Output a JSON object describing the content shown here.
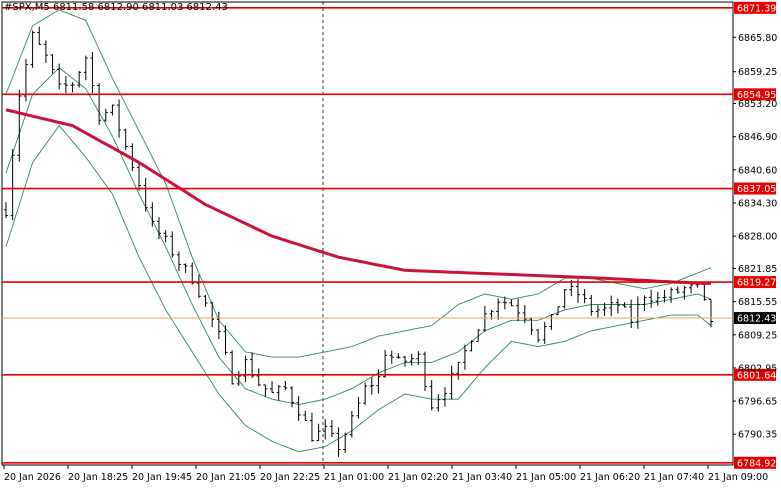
{
  "header": {
    "symbol_line": "#SPX,M5  6811.58 6812.90 6811.03 6812.43"
  },
  "colors": {
    "candle": "#000000",
    "bollinger": "#2e8b57",
    "moving_average": "#c8143c",
    "level_line": "#e60000",
    "current_price_line": "#e8a070",
    "current_price_label_bg": "#000000",
    "level_label_bg": "#e60000"
  },
  "chart_data": {
    "type": "candlestick",
    "ylim": [
      6784.5,
      6872.5
    ],
    "y_ticks": [
      "6865.80",
      "6859.25",
      "6853.20",
      "6846.90",
      "6840.60",
      "6834.30",
      "6828.00",
      "6821.85",
      "6815.55",
      "6809.25",
      "6802.95",
      "6796.65",
      "6790.35"
    ],
    "x_ticks": [
      "20 Jan 2026",
      "20 Jan 18:25",
      "20 Jan 19:45",
      "20 Jan 21:05",
      "20 Jan 22:25",
      "21 Jan 01:00",
      "21 Jan 02:20",
      "21 Jan 03:40",
      "21 Jan 05:00",
      "21 Jan 06:20",
      "21 Jan 07:40",
      "21 Jan 09:00"
    ],
    "session_separator_after": "20 Jan 22:25",
    "horizontal_levels": [
      "6871.39",
      "6854.95",
      "6837.05",
      "6819.27",
      "6801.64",
      "6784.92"
    ],
    "current_price": "6812.43",
    "close_path": [
      [
        0,
        6833
      ],
      [
        2,
        6855
      ],
      [
        4,
        6866
      ],
      [
        6,
        6862
      ],
      [
        8,
        6856
      ],
      [
        10,
        6857
      ],
      [
        12,
        6862
      ],
      [
        14,
        6851
      ],
      [
        16,
        6852
      ],
      [
        18,
        6845
      ],
      [
        20,
        6838
      ],
      [
        22,
        6830
      ],
      [
        24,
        6827
      ],
      [
        26,
        6823
      ],
      [
        28,
        6820
      ],
      [
        30,
        6815
      ],
      [
        32,
        6809
      ],
      [
        34,
        6801
      ],
      [
        36,
        6804
      ],
      [
        38,
        6800
      ],
      [
        40,
        6798
      ],
      [
        42,
        6799
      ],
      [
        44,
        6795
      ],
      [
        46,
        6790
      ],
      [
        48,
        6791
      ],
      [
        50,
        6788
      ],
      [
        52,
        6793
      ],
      [
        54,
        6799
      ],
      [
        56,
        6801
      ],
      [
        57,
        6806
      ],
      [
        59,
        6804
      ],
      [
        62,
        6805
      ],
      [
        64,
        6796
      ],
      [
        66,
        6799
      ],
      [
        68,
        6803
      ],
      [
        70,
        6809
      ],
      [
        72,
        6813
      ],
      [
        74,
        6816
      ],
      [
        76,
        6815
      ],
      [
        78,
        6813
      ],
      [
        80,
        6809
      ],
      [
        82,
        6812
      ],
      [
        84,
        6818
      ],
      [
        86,
        6817
      ],
      [
        88,
        6814
      ],
      [
        90,
        6814
      ],
      [
        92,
        6815
      ],
      [
        94,
        6812
      ],
      [
        96,
        6817
      ],
      [
        98,
        6816
      ],
      [
        100,
        6817
      ],
      [
        102,
        6818
      ],
      [
        104,
        6818
      ],
      [
        106,
        6812
      ]
    ],
    "moving_average_path": [
      [
        0,
        6852
      ],
      [
        10,
        6849
      ],
      [
        20,
        6842
      ],
      [
        30,
        6834
      ],
      [
        40,
        6828
      ],
      [
        50,
        6824
      ],
      [
        60,
        6821.5
      ],
      [
        70,
        6821
      ],
      [
        80,
        6820.5
      ],
      [
        90,
        6820
      ],
      [
        100,
        6819.3
      ],
      [
        106,
        6819
      ]
    ],
    "bollinger_upper_path": [
      [
        0,
        6855
      ],
      [
        4,
        6868
      ],
      [
        8,
        6871
      ],
      [
        12,
        6869
      ],
      [
        16,
        6858
      ],
      [
        20,
        6848
      ],
      [
        24,
        6838
      ],
      [
        28,
        6824
      ],
      [
        32,
        6812
      ],
      [
        36,
        6806
      ],
      [
        40,
        6805
      ],
      [
        44,
        6805
      ],
      [
        48,
        6806
      ],
      [
        52,
        6807
      ],
      [
        56,
        6809
      ],
      [
        60,
        6810
      ],
      [
        64,
        6811
      ],
      [
        68,
        6815
      ],
      [
        72,
        6817
      ],
      [
        76,
        6816
      ],
      [
        80,
        6817
      ],
      [
        84,
        6820
      ],
      [
        88,
        6820
      ],
      [
        92,
        6819
      ],
      [
        96,
        6818
      ],
      [
        100,
        6819
      ],
      [
        104,
        6821
      ],
      [
        106,
        6822
      ]
    ],
    "bollinger_middle_path": [
      [
        0,
        6840
      ],
      [
        4,
        6855
      ],
      [
        8,
        6860
      ],
      [
        12,
        6856
      ],
      [
        16,
        6847
      ],
      [
        20,
        6836
      ],
      [
        24,
        6826
      ],
      [
        28,
        6815
      ],
      [
        32,
        6805
      ],
      [
        36,
        6799
      ],
      [
        40,
        6797
      ],
      [
        44,
        6796
      ],
      [
        48,
        6797
      ],
      [
        52,
        6799
      ],
      [
        56,
        6802
      ],
      [
        60,
        6804
      ],
      [
        64,
        6804
      ],
      [
        68,
        6806
      ],
      [
        72,
        6810
      ],
      [
        76,
        6812
      ],
      [
        80,
        6812
      ],
      [
        84,
        6814
      ],
      [
        88,
        6815
      ],
      [
        92,
        6815
      ],
      [
        96,
        6815
      ],
      [
        100,
        6816
      ],
      [
        104,
        6817
      ],
      [
        106,
        6816
      ]
    ],
    "bollinger_lower_path": [
      [
        0,
        6826
      ],
      [
        4,
        6842
      ],
      [
        8,
        6849
      ],
      [
        12,
        6843
      ],
      [
        16,
        6836
      ],
      [
        20,
        6824
      ],
      [
        24,
        6814
      ],
      [
        28,
        6806
      ],
      [
        32,
        6798
      ],
      [
        36,
        6792
      ],
      [
        40,
        6789
      ],
      [
        44,
        6787
      ],
      [
        48,
        6788
      ],
      [
        52,
        6791
      ],
      [
        56,
        6795
      ],
      [
        60,
        6798
      ],
      [
        64,
        6797
      ],
      [
        68,
        6797
      ],
      [
        72,
        6803
      ],
      [
        76,
        6808
      ],
      [
        80,
        6807
      ],
      [
        84,
        6808
      ],
      [
        88,
        6810
      ],
      [
        92,
        6811
      ],
      [
        96,
        6812
      ],
      [
        100,
        6813
      ],
      [
        104,
        6813
      ],
      [
        106,
        6811
      ]
    ]
  }
}
